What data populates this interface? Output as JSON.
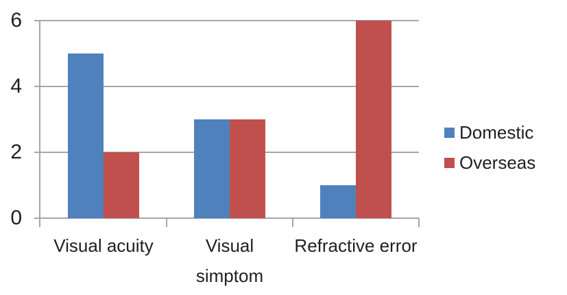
{
  "chart_data": {
    "type": "bar",
    "title": "",
    "xlabel": "",
    "ylabel": "",
    "categories": [
      "Visual acuity",
      "Visual simptom",
      "Refractive error"
    ],
    "series": [
      {
        "name": "Domestic",
        "color": "#4f81bd",
        "values": [
          5,
          3,
          1
        ]
      },
      {
        "name": "Overseas",
        "color": "#c0504d",
        "values": [
          2,
          3,
          6
        ]
      }
    ],
    "ylim": [
      0,
      6
    ],
    "yticks": [
      0,
      2,
      4,
      6
    ],
    "grid": true,
    "legend_position": "right"
  },
  "colors": {
    "grid": "#a6a6a6",
    "axis": "#a6a6a6",
    "text": "#1f1f1f",
    "background": "#ffffff"
  }
}
